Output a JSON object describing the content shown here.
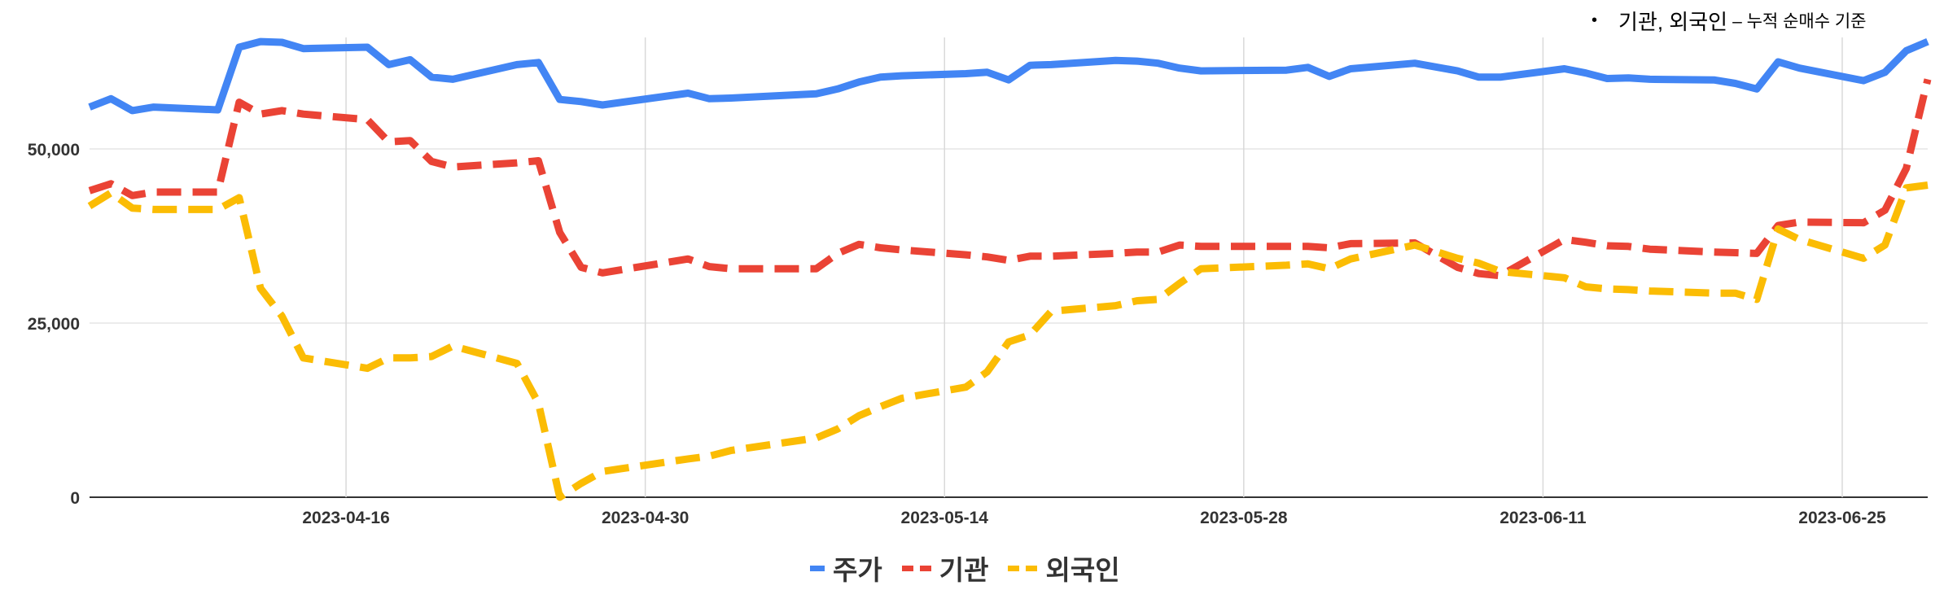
{
  "note": {
    "bullet": "•",
    "main": "기관, 외국인",
    "sub": "– 누적 순매수 기준"
  },
  "chart_data": {
    "type": "line",
    "title": "",
    "xlabel": "",
    "ylabel": "",
    "ylim": [
      0,
      66000
    ],
    "y_ticks": [
      0,
      25000,
      50000
    ],
    "y_tick_labels": [
      "0",
      "25,000",
      "50,000"
    ],
    "x_ticks": [
      "2023-04-16",
      "2023-04-30",
      "2023-05-14",
      "2023-05-28",
      "2023-06-11",
      "2023-06-25"
    ],
    "grid": true,
    "legend_position": "bottom",
    "series": [
      {
        "name": "주가",
        "color": "#4285f4",
        "dash": "solid",
        "points": [
          [
            "2023-04-04",
            56000
          ],
          [
            "2023-04-05",
            57200
          ],
          [
            "2023-04-06",
            55500
          ],
          [
            "2023-04-07",
            56000
          ],
          [
            "2023-04-10",
            55600
          ],
          [
            "2023-04-11",
            64600
          ],
          [
            "2023-04-12",
            65400
          ],
          [
            "2023-04-13",
            65300
          ],
          [
            "2023-04-14",
            64400
          ],
          [
            "2023-04-17",
            64600
          ],
          [
            "2023-04-18",
            62100
          ],
          [
            "2023-04-19",
            62800
          ],
          [
            "2023-04-20",
            60300
          ],
          [
            "2023-04-21",
            60000
          ],
          [
            "2023-04-24",
            62100
          ],
          [
            "2023-04-25",
            62400
          ],
          [
            "2023-04-26",
            57100
          ],
          [
            "2023-04-27",
            56800
          ],
          [
            "2023-04-28",
            56300
          ],
          [
            "2023-05-02",
            58000
          ],
          [
            "2023-05-03",
            57200
          ],
          [
            "2023-05-04",
            57300
          ],
          [
            "2023-05-08",
            57900
          ],
          [
            "2023-05-09",
            58600
          ],
          [
            "2023-05-10",
            59600
          ],
          [
            "2023-05-11",
            60300
          ],
          [
            "2023-05-12",
            60500
          ],
          [
            "2023-05-15",
            60800
          ],
          [
            "2023-05-16",
            61000
          ],
          [
            "2023-05-17",
            59900
          ],
          [
            "2023-05-18",
            62000
          ],
          [
            "2023-05-19",
            62100
          ],
          [
            "2023-05-22",
            62700
          ],
          [
            "2023-05-23",
            62600
          ],
          [
            "2023-05-24",
            62300
          ],
          [
            "2023-05-25",
            61600
          ],
          [
            "2023-05-26",
            61200
          ],
          [
            "2023-05-30",
            61300
          ],
          [
            "2023-05-31",
            61700
          ],
          [
            "2023-06-01",
            60400
          ],
          [
            "2023-06-02",
            61500
          ],
          [
            "2023-06-05",
            62300
          ],
          [
            "2023-06-07",
            61200
          ],
          [
            "2023-06-08",
            60300
          ],
          [
            "2023-06-09",
            60300
          ],
          [
            "2023-06-12",
            61500
          ],
          [
            "2023-06-13",
            60900
          ],
          [
            "2023-06-14",
            60100
          ],
          [
            "2023-06-15",
            60200
          ],
          [
            "2023-06-16",
            60000
          ],
          [
            "2023-06-19",
            59900
          ],
          [
            "2023-06-20",
            59400
          ],
          [
            "2023-06-21",
            58600
          ],
          [
            "2023-06-22",
            62500
          ],
          [
            "2023-06-23",
            61600
          ],
          [
            "2023-06-26",
            59800
          ],
          [
            "2023-06-27",
            61000
          ],
          [
            "2023-06-28",
            64100
          ],
          [
            "2023-06-29",
            65400
          ]
        ]
      },
      {
        "name": "기관",
        "color": "#ea4335",
        "dash": "dashed",
        "points": [
          [
            "2023-04-04",
            44000
          ],
          [
            "2023-04-05",
            45000
          ],
          [
            "2023-04-06",
            43300
          ],
          [
            "2023-04-07",
            43800
          ],
          [
            "2023-04-10",
            43800
          ],
          [
            "2023-04-11",
            56700
          ],
          [
            "2023-04-12",
            55000
          ],
          [
            "2023-04-13",
            55500
          ],
          [
            "2023-04-14",
            55000
          ],
          [
            "2023-04-17",
            54200
          ],
          [
            "2023-04-18",
            51000
          ],
          [
            "2023-04-19",
            51200
          ],
          [
            "2023-04-20",
            48200
          ],
          [
            "2023-04-21",
            47400
          ],
          [
            "2023-04-24",
            48000
          ],
          [
            "2023-04-25",
            48300
          ],
          [
            "2023-04-26",
            38000
          ],
          [
            "2023-04-27",
            33000
          ],
          [
            "2023-04-28",
            32200
          ],
          [
            "2023-05-02",
            34200
          ],
          [
            "2023-05-03",
            33100
          ],
          [
            "2023-05-04",
            32800
          ],
          [
            "2023-05-08",
            32800
          ],
          [
            "2023-05-09",
            35000
          ],
          [
            "2023-05-10",
            36300
          ],
          [
            "2023-05-11",
            35800
          ],
          [
            "2023-05-12",
            35500
          ],
          [
            "2023-05-15",
            34800
          ],
          [
            "2023-05-16",
            34500
          ],
          [
            "2023-05-17",
            34000
          ],
          [
            "2023-05-18",
            34600
          ],
          [
            "2023-05-19",
            34600
          ],
          [
            "2023-05-22",
            35000
          ],
          [
            "2023-05-23",
            35200
          ],
          [
            "2023-05-24",
            35200
          ],
          [
            "2023-05-25",
            36200
          ],
          [
            "2023-05-26",
            36000
          ],
          [
            "2023-05-30",
            36000
          ],
          [
            "2023-05-31",
            36000
          ],
          [
            "2023-06-01",
            35800
          ],
          [
            "2023-06-02",
            36400
          ],
          [
            "2023-06-05",
            36500
          ],
          [
            "2023-06-07",
            33000
          ],
          [
            "2023-06-08",
            32100
          ],
          [
            "2023-06-09",
            31800
          ],
          [
            "2023-06-12",
            37000
          ],
          [
            "2023-06-13",
            36600
          ],
          [
            "2023-06-14",
            36100
          ],
          [
            "2023-06-15",
            36000
          ],
          [
            "2023-06-16",
            35600
          ],
          [
            "2023-06-19",
            35200
          ],
          [
            "2023-06-20",
            35100
          ],
          [
            "2023-06-21",
            35000
          ],
          [
            "2023-06-22",
            39000
          ],
          [
            "2023-06-23",
            39500
          ],
          [
            "2023-06-26",
            39400
          ],
          [
            "2023-06-27",
            41200
          ],
          [
            "2023-06-28",
            47200
          ],
          [
            "2023-06-29",
            60000
          ]
        ]
      },
      {
        "name": "외국인",
        "color": "#fbbc04",
        "dash": "dashed",
        "points": [
          [
            "2023-04-04",
            41800
          ],
          [
            "2023-04-05",
            43700
          ],
          [
            "2023-04-06",
            41500
          ],
          [
            "2023-04-07",
            41300
          ],
          [
            "2023-04-10",
            41300
          ],
          [
            "2023-04-11",
            43000
          ],
          [
            "2023-04-12",
            30000
          ],
          [
            "2023-04-13",
            26000
          ],
          [
            "2023-04-14",
            20000
          ],
          [
            "2023-04-17",
            18500
          ],
          [
            "2023-04-18",
            20000
          ],
          [
            "2023-04-19",
            20000
          ],
          [
            "2023-04-20",
            20200
          ],
          [
            "2023-04-21",
            21700
          ],
          [
            "2023-04-24",
            19200
          ],
          [
            "2023-04-25",
            13500
          ],
          [
            "2023-04-26",
            0
          ],
          [
            "2023-04-27",
            2000
          ],
          [
            "2023-04-28",
            3700
          ],
          [
            "2023-05-02",
            5500
          ],
          [
            "2023-05-03",
            5900
          ],
          [
            "2023-05-04",
            6700
          ],
          [
            "2023-05-08",
            8500
          ],
          [
            "2023-05-09",
            9800
          ],
          [
            "2023-05-10",
            11700
          ],
          [
            "2023-05-11",
            13000
          ],
          [
            "2023-05-12",
            14200
          ],
          [
            "2023-05-15",
            15800
          ],
          [
            "2023-05-16",
            18000
          ],
          [
            "2023-05-17",
            22300
          ],
          [
            "2023-05-18",
            23300
          ],
          [
            "2023-05-19",
            26700
          ],
          [
            "2023-05-22",
            27500
          ],
          [
            "2023-05-23",
            28200
          ],
          [
            "2023-05-24",
            28400
          ],
          [
            "2023-05-25",
            30700
          ],
          [
            "2023-05-26",
            32800
          ],
          [
            "2023-05-30",
            33300
          ],
          [
            "2023-05-31",
            33500
          ],
          [
            "2023-06-01",
            32800
          ],
          [
            "2023-06-02",
            34200
          ],
          [
            "2023-06-05",
            36200
          ],
          [
            "2023-06-07",
            34300
          ],
          [
            "2023-06-08",
            33600
          ],
          [
            "2023-06-09",
            32400
          ],
          [
            "2023-06-12",
            31500
          ],
          [
            "2023-06-13",
            30200
          ],
          [
            "2023-06-14",
            29900
          ],
          [
            "2023-06-15",
            29800
          ],
          [
            "2023-06-16",
            29600
          ],
          [
            "2023-06-19",
            29300
          ],
          [
            "2023-06-20",
            29300
          ],
          [
            "2023-06-21",
            28400
          ],
          [
            "2023-06-22",
            38500
          ],
          [
            "2023-06-23",
            37000
          ],
          [
            "2023-06-26",
            34300
          ],
          [
            "2023-06-27",
            36200
          ],
          [
            "2023-06-28",
            44400
          ],
          [
            "2023-06-29",
            44800
          ]
        ]
      }
    ]
  }
}
